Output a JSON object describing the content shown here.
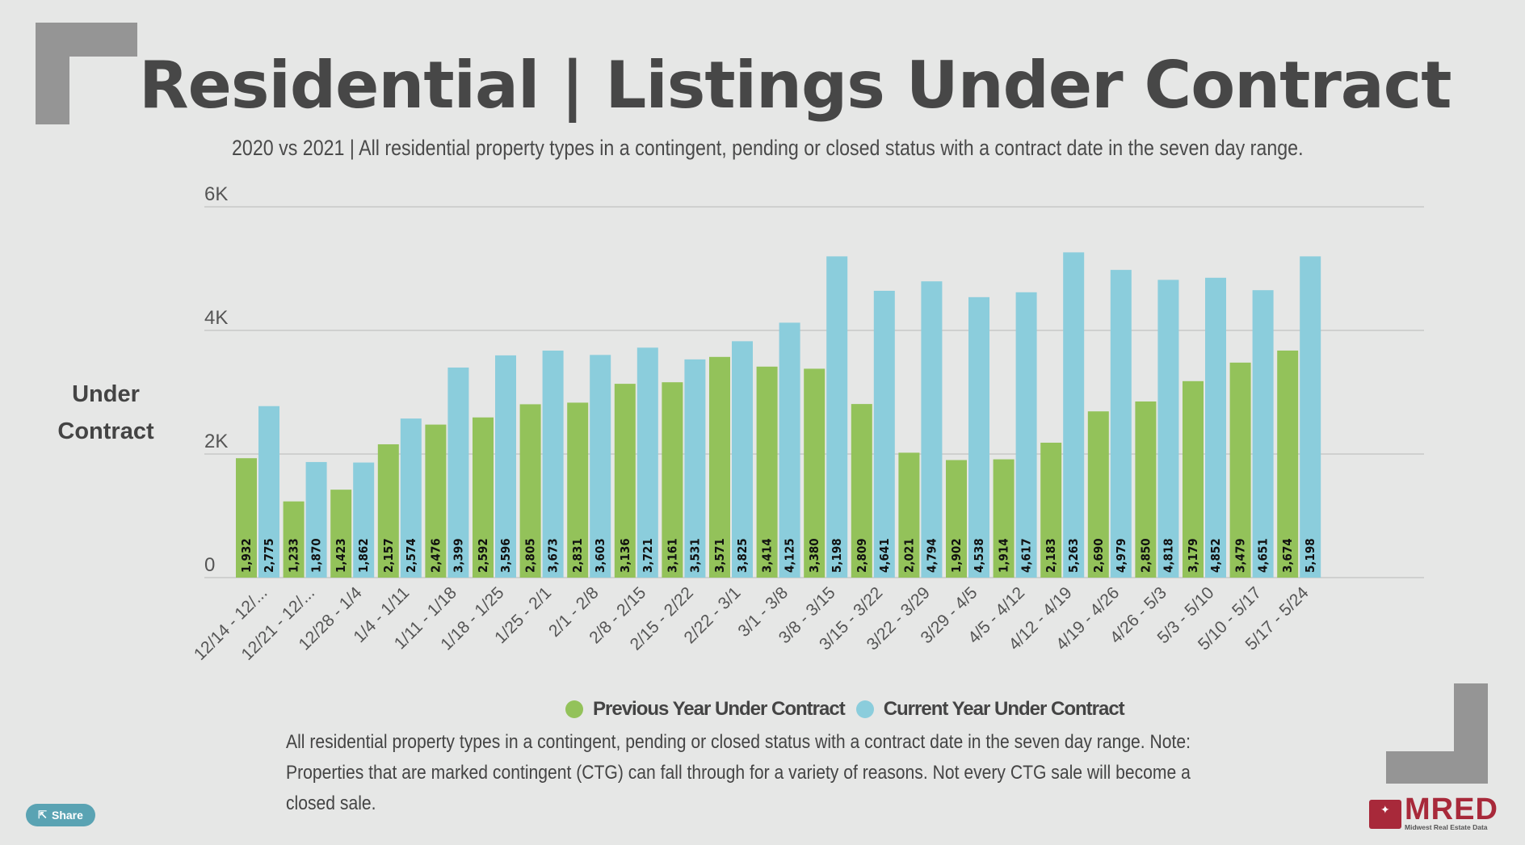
{
  "header": {
    "title": "Residential | Listings Under Contract",
    "subtitle": "2020 vs 2021 | All residential property types in a contingent, pending or closed status with a contract date in the seven day range."
  },
  "y_axis_label": "Under Contract",
  "note": "All residential property types in a contingent, pending or closed status with a contract date in the seven day range. Note: Properties that are marked contingent (CTG) can fall through for a variety of reasons. Not every CTG sale will become a closed sale.",
  "share_button": {
    "label": "Share",
    "icon": "share-icon"
  },
  "logo": {
    "name": "MRED",
    "tagline": "Midwest Real Estate Data"
  },
  "colors": {
    "previous": "#93c25a",
    "current": "#8bcddc",
    "grid": "#cfd0cf",
    "background": "#e6e7e6",
    "accent": "#a8293a"
  },
  "chart_data": {
    "type": "bar",
    "title": "Residential | Listings Under Contract",
    "subtitle": "2020 vs 2021 | All residential property types in a contingent, pending or closed status with a contract date in the seven day range.",
    "xlabel": "",
    "ylabel": "Under Contract",
    "ylim": [
      0,
      6000
    ],
    "yticks": [
      0,
      2000,
      4000,
      6000
    ],
    "ytick_labels": [
      "0",
      "2K",
      "4K",
      "6K"
    ],
    "grid": true,
    "legend_position": "bottom",
    "categories": [
      "12/14 - 12/...",
      "12/21 - 12/...",
      "12/28 - 1/4",
      "1/4 - 1/11",
      "1/11 - 1/18",
      "1/18 - 1/25",
      "1/25 - 2/1",
      "2/1 - 2/8",
      "2/8 - 2/15",
      "2/15 - 2/22",
      "2/22 - 3/1",
      "3/1 - 3/8",
      "3/8 - 3/15",
      "3/15 - 3/22",
      "3/22 - 3/29",
      "3/29 - 4/5",
      "4/5 - 4/12",
      "4/12 - 4/19",
      "4/19 - 4/26",
      "4/26 - 5/3",
      "5/3 - 5/10",
      "5/10 - 5/17",
      "5/17 - 5/24"
    ],
    "series": [
      {
        "name": "Previous Year Under Contract",
        "color": "#93c25a",
        "values": [
          1932,
          1233,
          1423,
          2157,
          2476,
          2592,
          2805,
          2831,
          3136,
          3161,
          3571,
          3414,
          3380,
          2809,
          2021,
          1902,
          1914,
          2183,
          2690,
          2850,
          3179,
          3479,
          3674
        ]
      },
      {
        "name": "Current Year Under Contract",
        "color": "#8bcddc",
        "values": [
          2775,
          1870,
          1862,
          2574,
          3399,
          3596,
          3673,
          3603,
          3721,
          3531,
          3825,
          4125,
          5198,
          4641,
          4794,
          4538,
          4617,
          5263,
          4979,
          4818,
          4852,
          4651,
          5198
        ]
      }
    ]
  }
}
